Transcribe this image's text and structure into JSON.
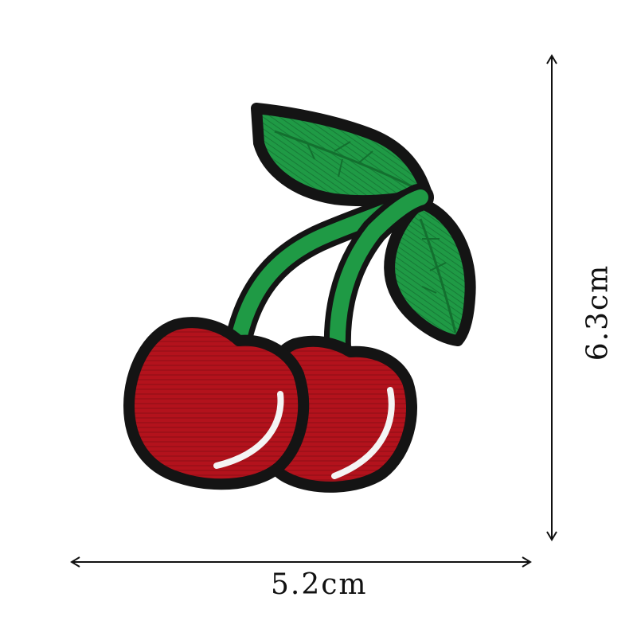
{
  "image": {
    "subject": "cherry-embroidered-patch",
    "colors": {
      "background": "#ffffff",
      "cherry_red": "#b3121c",
      "cherry_dark": "#7e0a12",
      "leaf_green": "#1f9a45",
      "leaf_dark": "#13702f",
      "outline": "#141414",
      "highlight": "#f4f4f4"
    }
  },
  "dimensions": {
    "width_label": "5.2cm",
    "height_label": "6.3cm"
  }
}
